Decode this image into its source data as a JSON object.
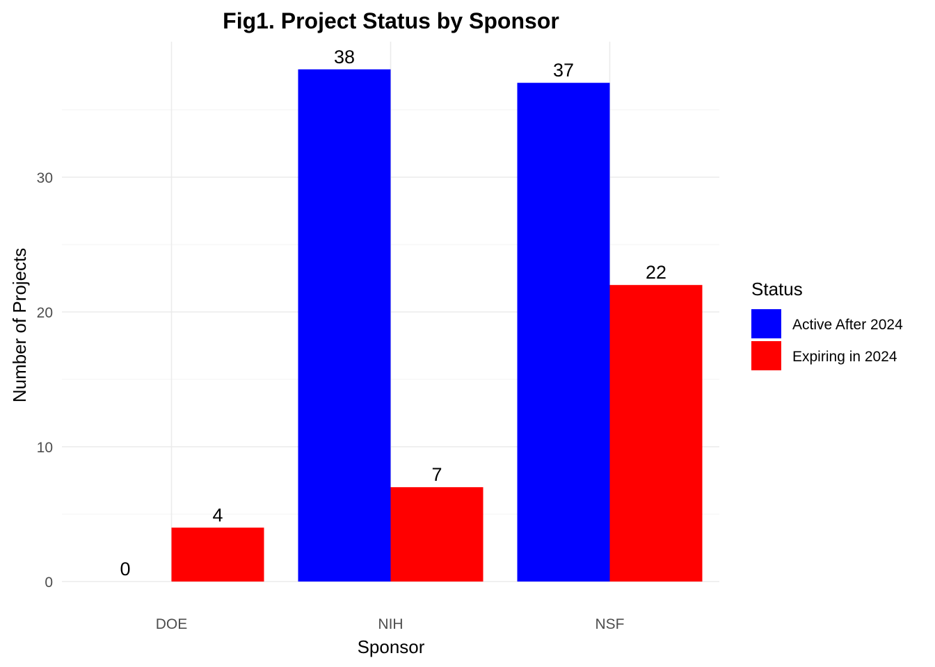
{
  "chart_data": {
    "type": "bar",
    "title": "Fig1. Project Status by Sponsor",
    "xlabel": "Sponsor",
    "ylabel": "Number of Projects",
    "categories": [
      "DOE",
      "NIH",
      "NSF"
    ],
    "series": [
      {
        "name": "Active After 2024",
        "color": "#0000ff",
        "values": [
          0,
          38,
          37
        ]
      },
      {
        "name": "Expiring in 2024",
        "color": "#ff0000",
        "values": [
          4,
          7,
          22
        ]
      }
    ],
    "ylim": [
      0,
      40
    ],
    "yticks": [
      0,
      10,
      20,
      30
    ],
    "grid": true,
    "legend": {
      "title": "Status",
      "placement": "right"
    }
  }
}
